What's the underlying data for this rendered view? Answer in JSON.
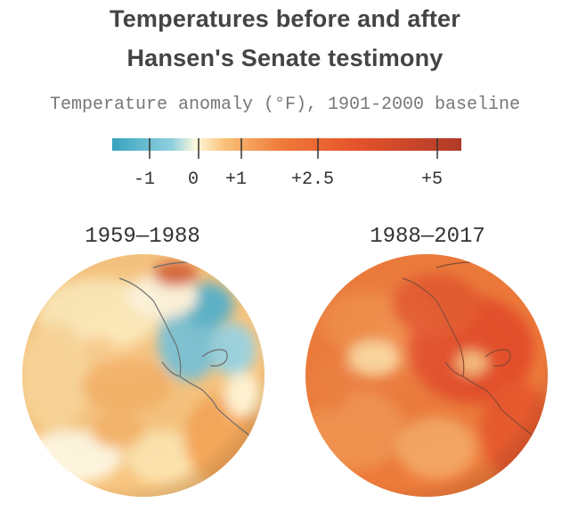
{
  "header": {
    "title_line1": "Temperatures before and after",
    "title_line2": "Hansen's Senate testimony",
    "subtitle": "Temperature anomaly (°F), 1901-2000 baseline"
  },
  "legend": {
    "ticks": [
      {
        "value": -1,
        "label": "-1"
      },
      {
        "value": 0,
        "label": "0"
      },
      {
        "value": 1,
        "label": "+1"
      },
      {
        "value": 2.5,
        "label": "+2.5"
      },
      {
        "value": 5,
        "label": "+5"
      }
    ],
    "colors": {
      "cold": "#3aa6bf",
      "neutral": "#fffbe6",
      "warm": "#f6a04c",
      "hot": "#e8542a",
      "hottest": "#b03a28"
    }
  },
  "maps": [
    {
      "period": "1959—1988"
    },
    {
      "period": "1988—2017"
    }
  ]
}
